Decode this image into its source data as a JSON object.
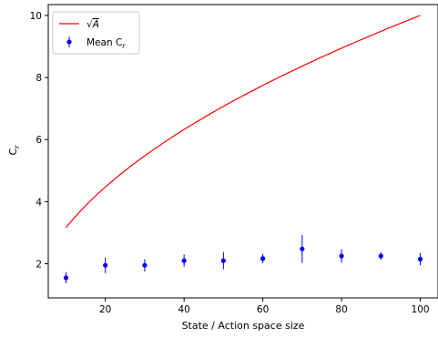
{
  "chart_data": {
    "type": "line",
    "title": "",
    "xlabel": "State / Action space size",
    "ylabel": "C_r",
    "xlim": [
      5.5,
      104.5
    ],
    "ylim": [
      0.9,
      10.35
    ],
    "x_ticks": [
      20,
      40,
      60,
      80,
      100
    ],
    "y_ticks": [
      2,
      4,
      6,
      8,
      10
    ],
    "grid": false,
    "legend_placement": "top-left",
    "series": [
      {
        "name": "√A",
        "kind": "line",
        "color": "#ff0000",
        "function": "sqrt(x)",
        "x_range": [
          10,
          100
        ]
      },
      {
        "name": "Mean C_r",
        "kind": "errorbar",
        "color": "#0000ff",
        "x": [
          10,
          20,
          30,
          40,
          50,
          60,
          70,
          80,
          90,
          100
        ],
        "y": [
          1.55,
          1.95,
          1.95,
          2.1,
          2.1,
          2.17,
          2.48,
          2.25,
          2.25,
          2.15
        ],
        "yerr": [
          0.18,
          0.25,
          0.2,
          0.2,
          0.28,
          0.15,
          0.45,
          0.22,
          0.12,
          0.2
        ]
      }
    ]
  }
}
